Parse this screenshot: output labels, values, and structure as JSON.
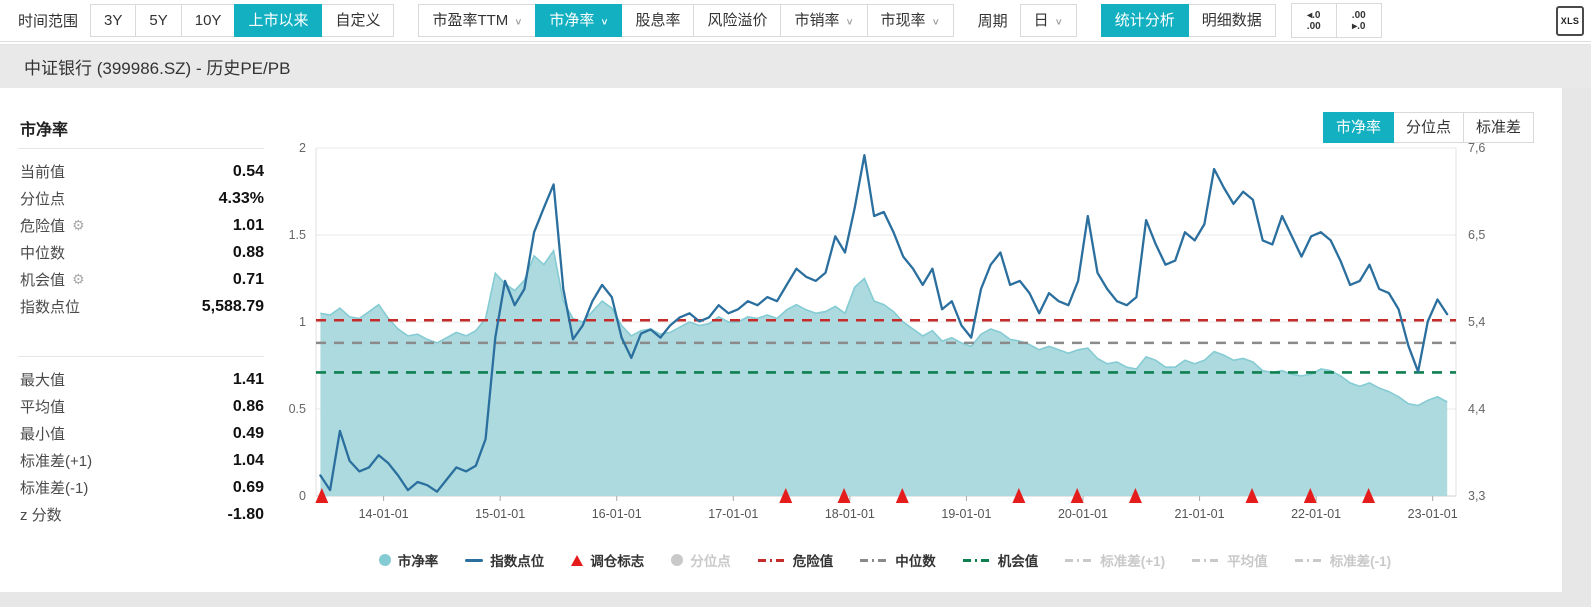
{
  "colors": {
    "accent": "#13b0c1",
    "area": "#a9d8dd",
    "area_edge": "#84cbd3",
    "line": "#2b6f9e",
    "danger": "#c62b2b",
    "median": "#8a8a8a",
    "opportunity": "#0e8050",
    "marker": "#e51c1c",
    "faded": "#c9c9c9"
  },
  "toolbar": {
    "time_label": "时间范围",
    "time_buttons": [
      {
        "label": "3Y"
      },
      {
        "label": "5Y"
      },
      {
        "label": "10Y"
      },
      {
        "label": "上市以来",
        "active": true
      },
      {
        "label": "自定义"
      }
    ],
    "metric_buttons": [
      {
        "label": "市盈率TTM",
        "dropdown": true
      },
      {
        "label": "市净率",
        "dropdown": true,
        "active": true
      },
      {
        "label": "股息率"
      },
      {
        "label": "风险溢价"
      },
      {
        "label": "市销率",
        "dropdown": true
      },
      {
        "label": "市现率",
        "dropdown": true
      }
    ],
    "period_label": "周期",
    "period_value": "日",
    "stat_button": "统计分析",
    "detail_button": "明细数据",
    "dec_left_top": "◂.0",
    "dec_left_bottom": ".00",
    "dec_right_top": ".00",
    "dec_right_bottom": "▸.0",
    "xls_label": "XLS"
  },
  "header": {
    "title": "中证银行 (399986.SZ) - 历史PE/PB"
  },
  "stats": {
    "panel_title": "市净率",
    "primary": [
      {
        "label": "当前值",
        "value": "0.54"
      },
      {
        "label": "分位点",
        "value": "4.33%"
      },
      {
        "label": "危险值",
        "value": "1.01"
      },
      {
        "label": "中位数",
        "value": "0.88"
      },
      {
        "label": "机会值",
        "value": "0.71"
      },
      {
        "label": "指数点位",
        "value": "5,588.79"
      }
    ],
    "secondary": [
      {
        "label": "最大值",
        "value": "1.41"
      },
      {
        "label": "平均值",
        "value": "0.86"
      },
      {
        "label": "最小值",
        "value": "0.49"
      },
      {
        "label": "标准差(+1)",
        "value": "1.04"
      },
      {
        "label": "标准差(-1)",
        "value": "0.69"
      },
      {
        "label": "z 分数",
        "value": "-1.80"
      }
    ]
  },
  "tabs": [
    {
      "label": "市净率",
      "active": true
    },
    {
      "label": "分位点"
    },
    {
      "label": "标准差"
    }
  ],
  "legend": {
    "items": [
      {
        "label": "市净率"
      },
      {
        "label": "指数点位"
      },
      {
        "label": "调仓标志"
      },
      {
        "label": "分位点",
        "faded": true
      },
      {
        "label": "危险值"
      },
      {
        "label": "中位数"
      },
      {
        "label": "机会值"
      },
      {
        "label": "标准差(+1)",
        "faded": true
      },
      {
        "label": "平均值",
        "faded": true
      },
      {
        "label": "标准差(-1)",
        "faded": true
      }
    ]
  },
  "chart_data": {
    "type": "line+area",
    "x_domain": [
      2013.42,
      2023.2
    ],
    "x_start": 2013.458,
    "x_step": 0.083333,
    "x_ticks": [
      {
        "t": 2014,
        "label": "14-01-01"
      },
      {
        "t": 2015,
        "label": "15-01-01"
      },
      {
        "t": 2016,
        "label": "16-01-01"
      },
      {
        "t": 2017,
        "label": "17-01-01"
      },
      {
        "t": 2018,
        "label": "18-01-01"
      },
      {
        "t": 2019,
        "label": "19-01-01"
      },
      {
        "t": 2020,
        "label": "20-01-01"
      },
      {
        "t": 2021,
        "label": "21-01-01"
      },
      {
        "t": 2022,
        "label": "22-01-01"
      },
      {
        "t": 2023,
        "label": "23-01-01"
      }
    ],
    "y_left": {
      "min": 0,
      "max": 2,
      "ticks": [
        0,
        0.5,
        1,
        1.5,
        2
      ],
      "tick_labels": [
        "0",
        "0.5",
        "1",
        "1.5",
        "2"
      ]
    },
    "y_right": {
      "min": 3347,
      "max": 7639,
      "ticks": [
        3347,
        4420,
        5493,
        6566,
        7639
      ],
      "tick_labels": [
        "3,347",
        "4,420",
        "5,493",
        "6,566",
        "7,639"
      ]
    },
    "series": [
      {
        "name": "市净率",
        "type": "area",
        "axis": "left",
        "values": [
          1.05,
          1.04,
          1.08,
          1.03,
          1.02,
          1.06,
          1.1,
          1.02,
          0.96,
          0.92,
          0.93,
          0.9,
          0.88,
          0.91,
          0.94,
          0.92,
          0.95,
          1.02,
          1.28,
          1.22,
          1.18,
          1.24,
          1.38,
          1.33,
          1.41,
          1.12,
          1.02,
          1.0,
          1.06,
          1.12,
          1.08,
          0.98,
          0.92,
          0.95,
          0.96,
          0.93,
          0.94,
          0.97,
          1.0,
          0.98,
          0.99,
          1.03,
          1.0,
          1.0,
          1.03,
          1.02,
          1.04,
          1.02,
          1.07,
          1.1,
          1.07,
          1.05,
          1.06,
          1.09,
          1.05,
          1.2,
          1.25,
          1.12,
          1.1,
          1.06,
          1.0,
          0.96,
          0.92,
          0.95,
          0.89,
          0.91,
          0.88,
          0.86,
          0.93,
          0.96,
          0.94,
          0.9,
          0.89,
          0.87,
          0.84,
          0.86,
          0.84,
          0.82,
          0.84,
          0.85,
          0.79,
          0.76,
          0.77,
          0.74,
          0.73,
          0.8,
          0.78,
          0.74,
          0.74,
          0.78,
          0.76,
          0.78,
          0.83,
          0.81,
          0.78,
          0.79,
          0.77,
          0.72,
          0.71,
          0.72,
          0.7,
          0.69,
          0.7,
          0.73,
          0.72,
          0.69,
          0.65,
          0.63,
          0.65,
          0.62,
          0.6,
          0.57,
          0.53,
          0.52,
          0.55,
          0.57,
          0.54
        ]
      },
      {
        "name": "指数点位",
        "type": "line",
        "axis": "right",
        "values": [
          3600,
          3420,
          4150,
          3780,
          3650,
          3700,
          3850,
          3750,
          3600,
          3420,
          3520,
          3480,
          3400,
          3550,
          3700,
          3650,
          3720,
          4050,
          5300,
          6000,
          5700,
          5900,
          6600,
          6900,
          7190,
          5900,
          5280,
          5450,
          5750,
          5950,
          5800,
          5300,
          5050,
          5350,
          5400,
          5300,
          5450,
          5550,
          5600,
          5500,
          5550,
          5700,
          5600,
          5650,
          5750,
          5700,
          5800,
          5750,
          5950,
          6150,
          6050,
          6000,
          6100,
          6550,
          6350,
          6900,
          7550,
          6800,
          6850,
          6600,
          6300,
          6150,
          5950,
          6150,
          5650,
          5750,
          5450,
          5300,
          5900,
          6200,
          6350,
          5950,
          6000,
          5850,
          5600,
          5850,
          5750,
          5700,
          6000,
          6800,
          6100,
          5900,
          5750,
          5700,
          5800,
          6750,
          6450,
          6200,
          6250,
          6600,
          6500,
          6700,
          7380,
          7150,
          6950,
          7100,
          7000,
          6500,
          6450,
          6800,
          6550,
          6300,
          6550,
          6600,
          6500,
          6250,
          5950,
          6000,
          6200,
          5900,
          5850,
          5650,
          5200,
          4880,
          5500,
          5770,
          5589
        ]
      }
    ],
    "ref_lines": [
      {
        "name": "危险值",
        "value": 1.01,
        "color": "danger"
      },
      {
        "name": "中位数",
        "value": 0.88,
        "color": "median"
      },
      {
        "name": "机会值",
        "value": 0.71,
        "color": "opportunity"
      }
    ],
    "markers": {
      "name": "调仓标志",
      "dates": [
        2013.47,
        2017.45,
        2017.95,
        2018.45,
        2019.45,
        2019.95,
        2020.45,
        2021.45,
        2021.95,
        2022.45
      ]
    }
  }
}
